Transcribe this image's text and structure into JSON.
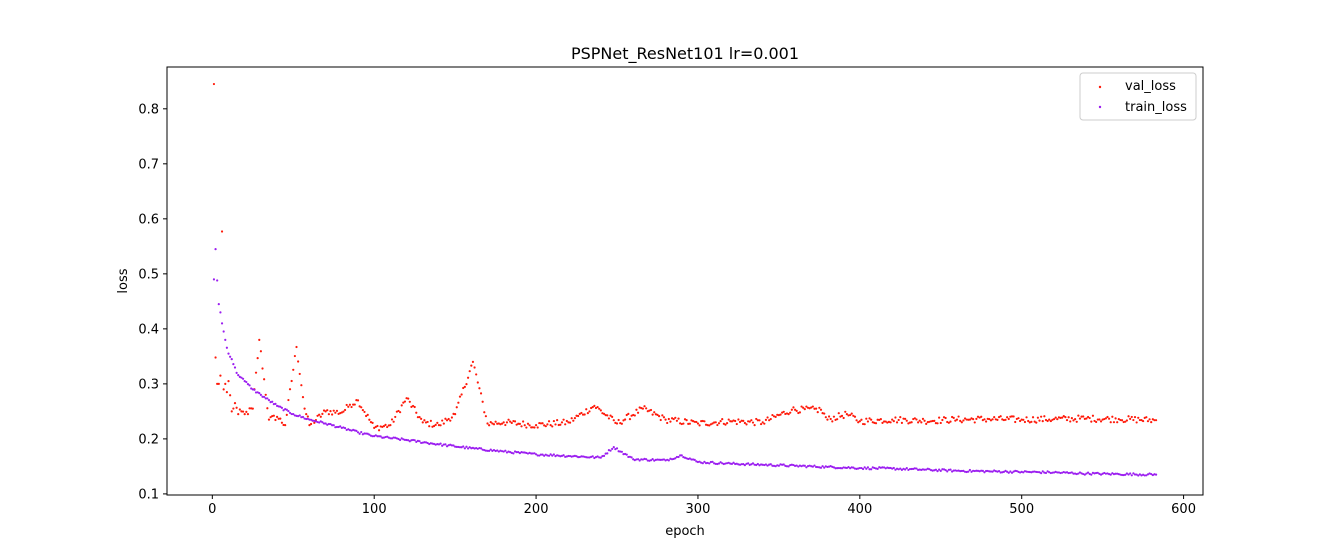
{
  "chart_data": {
    "type": "scatter",
    "title": "PSPNet_ResNet101 lr=0.001",
    "xlabel": "epoch",
    "ylabel": "loss",
    "xlim": [
      -28,
      612
    ],
    "ylim": [
      0.098,
      0.876
    ],
    "xticks": [
      0,
      100,
      200,
      300,
      400,
      500,
      600
    ],
    "yticks": [
      0.1,
      0.2,
      0.3,
      0.4,
      0.5,
      0.6,
      0.7,
      0.8
    ],
    "legend_position": "top-right",
    "n_epochs": 583,
    "series": [
      {
        "name": "val_loss",
        "color": "#ff1a0a",
        "notes": "plateaus ~0.22-0.235 after epoch ~40",
        "key_points": [
          [
            1,
            0.845
          ],
          [
            2,
            0.348
          ],
          [
            3,
            0.3
          ],
          [
            4,
            0.3
          ],
          [
            5,
            0.315
          ],
          [
            6,
            0.577
          ],
          [
            7,
            0.29
          ],
          [
            8,
            0.3
          ],
          [
            9,
            0.285
          ],
          [
            10,
            0.305
          ],
          [
            12,
            0.25
          ],
          [
            14,
            0.265
          ],
          [
            16,
            0.245
          ],
          [
            18,
            0.25
          ],
          [
            20,
            0.245
          ],
          [
            25,
            0.255
          ],
          [
            29,
            0.38
          ],
          [
            35,
            0.235
          ],
          [
            40,
            0.24
          ],
          [
            45,
            0.225
          ],
          [
            52,
            0.367
          ],
          [
            57,
            0.255
          ],
          [
            60,
            0.225
          ],
          [
            70,
            0.25
          ],
          [
            80,
            0.248
          ],
          [
            85,
            0.262
          ],
          [
            90,
            0.27
          ],
          [
            100,
            0.22
          ],
          [
            110,
            0.225
          ],
          [
            120,
            0.274
          ],
          [
            130,
            0.23
          ],
          [
            140,
            0.225
          ],
          [
            150,
            0.245
          ],
          [
            161,
            0.34
          ],
          [
            170,
            0.228
          ],
          [
            180,
            0.23
          ],
          [
            200,
            0.225
          ],
          [
            220,
            0.23
          ],
          [
            236,
            0.26
          ],
          [
            250,
            0.228
          ],
          [
            266,
            0.255
          ],
          [
            280,
            0.235
          ],
          [
            300,
            0.228
          ],
          [
            320,
            0.232
          ],
          [
            340,
            0.23
          ],
          [
            358,
            0.253
          ],
          [
            376,
            0.253
          ],
          [
            380,
            0.235
          ],
          [
            392,
            0.245
          ],
          [
            400,
            0.232
          ],
          [
            420,
            0.235
          ],
          [
            440,
            0.233
          ],
          [
            460,
            0.235
          ],
          [
            480,
            0.236
          ],
          [
            500,
            0.235
          ],
          [
            520,
            0.236
          ],
          [
            540,
            0.237
          ],
          [
            560,
            0.236
          ],
          [
            583,
            0.234
          ]
        ]
      },
      {
        "name": "train_loss",
        "color": "#9b1ef0",
        "notes": "monotonic decrease from ~0.545 to ~0.135",
        "key_points": [
          [
            1,
            0.49
          ],
          [
            2,
            0.545
          ],
          [
            3,
            0.488
          ],
          [
            4,
            0.445
          ],
          [
            5,
            0.43
          ],
          [
            6,
            0.41
          ],
          [
            8,
            0.38
          ],
          [
            10,
            0.355
          ],
          [
            12,
            0.345
          ],
          [
            15,
            0.32
          ],
          [
            20,
            0.305
          ],
          [
            25,
            0.29
          ],
          [
            30,
            0.28
          ],
          [
            40,
            0.26
          ],
          [
            50,
            0.245
          ],
          [
            60,
            0.235
          ],
          [
            70,
            0.228
          ],
          [
            80,
            0.22
          ],
          [
            90,
            0.212
          ],
          [
            100,
            0.205
          ],
          [
            120,
            0.198
          ],
          [
            140,
            0.19
          ],
          [
            160,
            0.183
          ],
          [
            180,
            0.177
          ],
          [
            200,
            0.172
          ],
          [
            220,
            0.169
          ],
          [
            240,
            0.166
          ],
          [
            248,
            0.185
          ],
          [
            260,
            0.163
          ],
          [
            280,
            0.161
          ],
          [
            290,
            0.17
          ],
          [
            300,
            0.158
          ],
          [
            320,
            0.155
          ],
          [
            340,
            0.153
          ],
          [
            360,
            0.151
          ],
          [
            380,
            0.149
          ],
          [
            400,
            0.147
          ],
          [
            420,
            0.146
          ],
          [
            440,
            0.144
          ],
          [
            460,
            0.142
          ],
          [
            480,
            0.141
          ],
          [
            500,
            0.14
          ],
          [
            520,
            0.139
          ],
          [
            540,
            0.137
          ],
          [
            560,
            0.136
          ],
          [
            583,
            0.135
          ]
        ]
      }
    ]
  }
}
